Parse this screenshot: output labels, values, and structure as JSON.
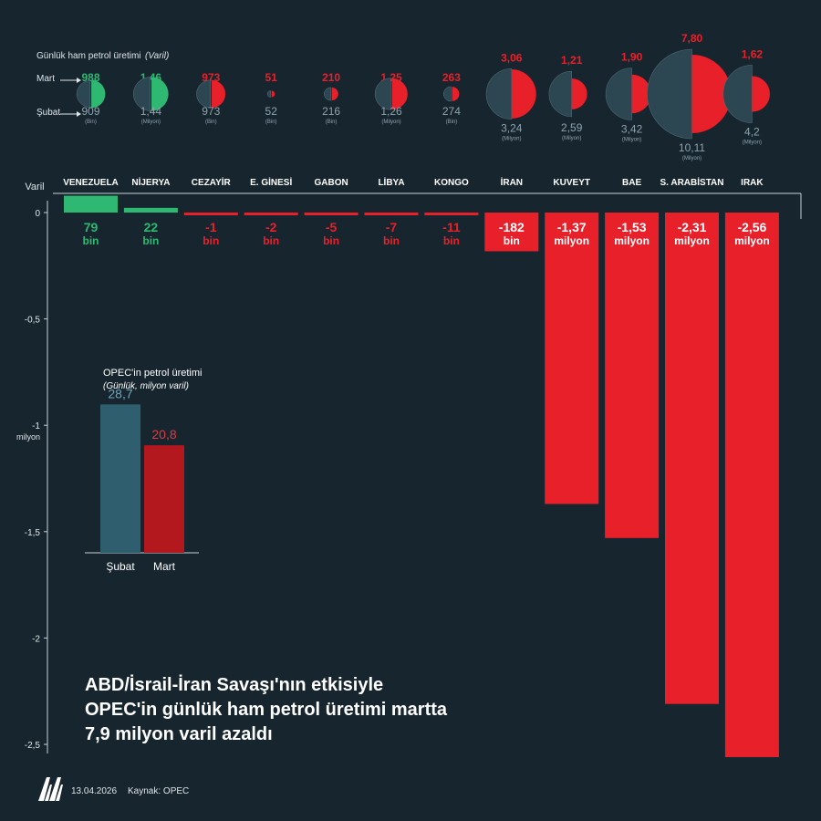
{
  "summary": {
    "header": "Günlük ham petrol üretimi",
    "header_unit": "(Varil)",
    "row_labels": {
      "march": "Mart",
      "february": "Şubat"
    }
  },
  "chart_data": {
    "type": "bar",
    "ylabel": "Varil",
    "ylim": [
      -2.5,
      0
    ],
    "y_ticks": [
      0,
      -0.5,
      -1,
      -1.5,
      -2,
      -2.5
    ],
    "y_tick_labels": [
      "0",
      "-0,5",
      "-1",
      "-1,5",
      "-2",
      "-2,5"
    ],
    "y_unit_label": "milyon",
    "grid": false,
    "countries": [
      {
        "name": "VENEZUELA",
        "change_million": 0.079,
        "change_value": "79",
        "change_unit": "bin",
        "mart": "988",
        "subat": "909",
        "unit_small": "(Bin)",
        "mart_num": 988,
        "subat_num": 909
      },
      {
        "name": "NİJERYA",
        "change_million": 0.022,
        "change_value": "22",
        "change_unit": "bin",
        "mart": "1,46",
        "subat": "1,44",
        "unit_small": "(Milyon)",
        "mart_num": 1460,
        "subat_num": 1440
      },
      {
        "name": "CEZAYİR",
        "change_million": -0.001,
        "change_value": "-1",
        "change_unit": "bin",
        "mart": "973",
        "subat": "973",
        "unit_small": "(Bin)",
        "mart_num": 973,
        "subat_num": 973
      },
      {
        "name": "E. GİNESİ",
        "change_million": -0.002,
        "change_value": "-2",
        "change_unit": "bin",
        "mart": "51",
        "subat": "52",
        "unit_small": "(Bin)",
        "mart_num": 51,
        "subat_num": 52
      },
      {
        "name": "GABON",
        "change_million": -0.005,
        "change_value": "-5",
        "change_unit": "bin",
        "mart": "210",
        "subat": "216",
        "unit_small": "(Bin)",
        "mart_num": 210,
        "subat_num": 216
      },
      {
        "name": "LİBYA",
        "change_million": -0.007,
        "change_value": "-7",
        "change_unit": "bin",
        "mart": "1,25",
        "subat": "1,26",
        "unit_small": "(Milyon)",
        "mart_num": 1250,
        "subat_num": 1260
      },
      {
        "name": "KONGO",
        "change_million": -0.011,
        "change_value": "-11",
        "change_unit": "bin",
        "mart": "263",
        "subat": "274",
        "unit_small": "(Bin)",
        "mart_num": 263,
        "subat_num": 274
      },
      {
        "name": "İRAN",
        "change_million": -0.182,
        "change_value": "-182",
        "change_unit": "bin",
        "mart": "3,06",
        "subat": "3,24",
        "unit_small": "(Milyon)",
        "mart_num": 3060,
        "subat_num": 3240
      },
      {
        "name": "KUVEYT",
        "change_million": -1.37,
        "change_value": "-1,37",
        "change_unit": "milyon",
        "mart": "1,21",
        "subat": "2,59",
        "unit_small": "(Milyon)",
        "mart_num": 1210,
        "subat_num": 2590
      },
      {
        "name": "BAE",
        "change_million": -1.53,
        "change_value": "-1,53",
        "change_unit": "milyon",
        "mart": "1,90",
        "subat": "3,42",
        "unit_small": "(Milyon)",
        "mart_num": 1900,
        "subat_num": 3420
      },
      {
        "name": "S. ARABİSTAN",
        "change_million": -2.31,
        "change_value": "-2,31",
        "change_unit": "milyon",
        "mart": "7,80",
        "subat": "10,11",
        "unit_small": "(Milyon)",
        "mart_num": 7800,
        "subat_num": 10110
      },
      {
        "name": "IRAK",
        "change_million": -2.56,
        "change_value": "-2,56",
        "change_unit": "milyon",
        "mart": "1,62",
        "subat": "4,2",
        "unit_small": "(Milyon)",
        "mart_num": 1620,
        "subat_num": 4200
      }
    ],
    "inset": {
      "type": "bar",
      "title": "OPEC'in petrol üretimi",
      "subtitle": "(Günlük, milyon varil)",
      "categories": [
        "Şubat",
        "Mart"
      ],
      "values": [
        28.7,
        20.8
      ],
      "value_labels": [
        "28,7",
        "20,8"
      ],
      "ylim": [
        0,
        30
      ]
    }
  },
  "headline": [
    "ABD/İsrail-İran Savaşı'nın etkisiyle",
    "OPEC'in günlük ham petrol üretimi martta",
    "7,9 milyon varil azaldı"
  ],
  "footer": {
    "date": "13.04.2026",
    "source": "Kaynak: OPEC",
    "logo_alt": "AA"
  },
  "colors": {
    "background": "#17252f",
    "green": "#2eb872",
    "red": "#e8202a",
    "slate": "#2c4652",
    "light_text": "#dfe6ea",
    "inset_feb": "#2f5f6f",
    "inset_mar": "#b3181f"
  }
}
